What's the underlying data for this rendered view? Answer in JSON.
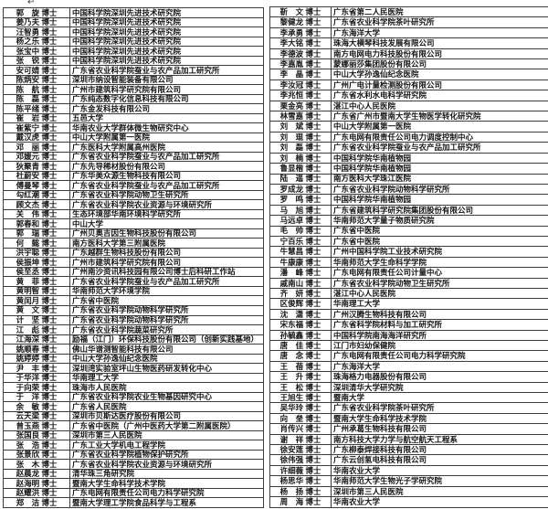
{
  "page": {
    "return_mark": "↵"
  },
  "left_table": {
    "rows": [
      {
        "name": "郭　旋 博士",
        "org": "中国科学院深圳先进技术研究院"
      },
      {
        "name": "姜乃夫 博士",
        "org": "中国科学院深圳先进技术研究院"
      },
      {
        "name": "汪智勇 博士",
        "org": "中国科学院深圳先进技术研究院"
      },
      {
        "name": "杨之乐 博士",
        "org": "中国科学院深圳先进技术研究院"
      },
      {
        "name": "张宝中 博士",
        "org": "中国科学院深圳先进技术研究院"
      },
      {
        "name": "张　锐 博士",
        "org": "中国科学院深圳先进技术研究院"
      },
      {
        "name": "安可婧 博士",
        "org": "广东省农业科学院蚕业与农产品加工研究所"
      },
      {
        "name": "陈炳安 博士",
        "org": "深圳市纳设智能装备有限公司"
      },
      {
        "name": "陈　航 博士",
        "org": "广州市建筑科学研究院有限公司"
      },
      {
        "name": "陈　磊 博士",
        "org": "广东纯态数字化信息科技有限公司"
      },
      {
        "name": "陈平绪 博士",
        "org": "广东金发科技有限公司"
      },
      {
        "name": "崔　岩 博士",
        "org": "五邑大学"
      },
      {
        "name": "崔紫宁 博士",
        "org": "华南农业大学群体微生物研究中心"
      },
      {
        "name": "戴汉虎 博士",
        "org": "中山大学附属第一医院"
      },
      {
        "name": "邓　丽 博士",
        "org": "广东医科大学附属高州医院"
      },
      {
        "name": "邓媛元 博士",
        "org": "广东省农业科学院蚕业与农产品加工研究所"
      },
      {
        "name": "狄聚青 博士",
        "org": "广东先导稀材股份有限公司"
      },
      {
        "name": "杜蔚安 博士",
        "org": "广东华美众源生物科技有限公司"
      },
      {
        "name": "傅曼琴 博士",
        "org": "广东省农业科学院蚕业与农产品加工研究所"
      },
      {
        "name": "勾红潮 博士",
        "org": "广东省农业科学院动物卫生研究所"
      },
      {
        "name": "顾文杰 博士",
        "org": "广东省农业科学院农业资源与环境研究所"
      },
      {
        "name": "关　伟 博士",
        "org": "生态环境部华南环境科学研究所"
      },
      {
        "name": "郭春和 博士",
        "org": "中山大学"
      },
      {
        "name": "郭　瑞 博士",
        "org": "广州贝奥吉因生物科技股份有限公司"
      },
      {
        "name": "何　懿 博士",
        "org": "南方医科大学第三附属医院"
      },
      {
        "name": "洪宇聪 博士",
        "org": "广东越群生物科技股份有限公司"
      },
      {
        "name": "侯振坤 博士",
        "org": "广州市建筑科学研究院有限公司"
      },
      {
        "name": "侯至丞 博士",
        "org": "广州南沙资讯科技园有限公司博士后科研工作站"
      },
      {
        "name": "黄　菲 博士",
        "org": "广东省农业科学院蚕业与农产品加工研究所"
      },
      {
        "name": "黄明智 博士",
        "org": "华南师范大学环境学院"
      },
      {
        "name": "黄闰月 博士",
        "org": "广东省中医院"
      },
      {
        "name": "黄　文 博士",
        "org": "广东省农业科学院动物科学研究所"
      },
      {
        "name": "计　坚 博士",
        "org": "广东省农业科学院动物科学研究所"
      },
      {
        "name": "江　彪 博士",
        "org": "广东省农业科学院蔬菜研究所"
      },
      {
        "name": "江海深 博士",
        "org": "励福（江门）环保科技股份有限公司（创新实践基地）"
      },
      {
        "name": "姚顺春 博士",
        "org": "佛山华谱测智能科技有限公司"
      },
      {
        "name": "姚婷婷 博士",
        "org": "中山大学孙逸仙纪念医院"
      },
      {
        "name": "尹　丰 博士",
        "org": "深圳湾实验室坪山生物医药研发转化中心"
      },
      {
        "name": "于华洋 博士",
        "org": "华南理工大学"
      },
      {
        "name": "于向荣 博士",
        "org": "珠海市人民医院"
      },
      {
        "name": "于　洋 博士",
        "org": "广东省农业科学院农业生物基因研究中心"
      },
      {
        "name": "余　敏 博士",
        "org": "广东省人民医院"
      },
      {
        "name": "云天梁 博士",
        "org": "深圳市贝斯达医疗股份有限公司"
      },
      {
        "name": "曾玉燕 博士",
        "org": "广东省中医院（广州中医药大学第二附属医院）"
      },
      {
        "name": "张国良 博士",
        "org": "深圳市第三人民医院"
      },
      {
        "name": "张　浩 博士",
        "org": "广东工业大学机电工程学院"
      },
      {
        "name": "张景欣 博士",
        "org": "广东省农业科学院植物保护研究所"
      },
      {
        "name": "张　木 博士",
        "org": "广东省农业科学院农业资源与环境研究所"
      },
      {
        "name": "赵晨龙 博士",
        "org": "清华珠三角研究院"
      },
      {
        "name": "赵海明 博士",
        "org": "暨南大学生命科学技术学院"
      },
      {
        "name": "赵耀洪 博士",
        "org": "广东电网有限责任公司电力科学研究院"
      },
      {
        "name": "郑　洁 博士",
        "org": "暨南大学理工学院食品科学与工程系"
      }
    ]
  },
  "right_table": {
    "rows": [
      {
        "name": "靳　文 博士",
        "org": "广东省第二人民医院"
      },
      {
        "name": "黎健龙 博士",
        "org": "广东省农业科学院茶叶研究所"
      },
      {
        "name": "李承勇 博士",
        "org": "广东海洋大学"
      },
      {
        "name": "李大铭 博士",
        "org": "珠海大横琴科技发展有限公司"
      },
      {
        "name": "李德波 博士",
        "org": "南方电网电力科技股份有限公司"
      },
      {
        "name": "李嘉胤 博士",
        "org": "蒙娜丽莎集团股份有限公司"
      },
      {
        "name": "李　晶 博士",
        "org": "中山大学孙逸仙纪念医院"
      },
      {
        "name": "李汝冠 博士",
        "org": "广州广电计量检测股份有限公司"
      },
      {
        "name": "李兆恒 博士",
        "org": "广东省水利水电科学研究院"
      },
      {
        "name": "栗金亮 博士",
        "org": "湛江中心人民医院"
      },
      {
        "name": "林雪嘉 博士",
        "org": "广东省广州市暨南大学生物医学转化研究院"
      },
      {
        "name": "刘　斌 博士",
        "org": "中山大学附属第一医院"
      },
      {
        "name": "刘　琨 博士",
        "org": "广东电网有限责任公司电力调度控制中心"
      },
      {
        "name": "刘　磊 博士",
        "org": "广东省农业科学院蚕业与农产品加工研究所"
      },
      {
        "name": "刘　楠 博士",
        "org": "中国科学院华南植物园"
      },
      {
        "name": "鲁显楷 博士",
        "org": "中国科学院华南植物园"
      },
      {
        "name": "陆　遥 博士",
        "org": "南方医科大学珠江医院"
      },
      {
        "name": "罗成龙 博士",
        "org": "广东省农业科学院动物科学研究所"
      },
      {
        "name": "罗　鸣 博士",
        "org": "中国科学院华南植物园"
      },
      {
        "name": "马　旭 博士",
        "org": "广东省建筑科学研究院集团股份有限公司"
      },
      {
        "name": "马远卓 博士",
        "org": "华南师范大学量子物质研究院"
      },
      {
        "name": "毛　帅 博士",
        "org": "广东省中医院"
      },
      {
        "name": "宁百乐 博士",
        "org": "广东省中医院"
      },
      {
        "name": "牛慧昌 博士",
        "org": "广州中国科学院工业技术研究院"
      },
      {
        "name": "牛康康 博士",
        "org": "华南师范大学生命科学学院"
      },
      {
        "name": "潘　峰 博士",
        "org": "广东电网有限责任公司计量中心"
      },
      {
        "name": "戚南山 博士",
        "org": "广东省农业科学院动物卫生研究所"
      },
      {
        "name": "齐　妍 博士",
        "org": "湛江中心人民医院"
      },
      {
        "name": "区俊辉 博士",
        "org": "华南理工大学"
      },
      {
        "name": "沈　潇 博士",
        "org": "广州汉腾生物科技有限公司"
      },
      {
        "name": "宋东福 博士",
        "org": "广东省科学院材料与加工研究所"
      },
      {
        "name": "孙毓鑫 博士",
        "org": "中国科学院南海海洋研究所"
      },
      {
        "name": "唐　佳 博士",
        "org": "江门市妇幼保健院"
      },
      {
        "name": "唐　念 博士",
        "org": "广东电网有限责任公司电力科学研究院"
      },
      {
        "name": "王　蓓 博士",
        "org": "广东海洋大学"
      },
      {
        "name": "王　升 博士",
        "org": "珠海格力电器股份有限公司"
      },
      {
        "name": "王　松 博士",
        "org": "深圳清华大学研究院"
      },
      {
        "name": "王旭生 博士",
        "org": "暨南大学"
      },
      {
        "name": "吴华玲 博士",
        "org": "广东省农业科学院茶叶研究所"
      },
      {
        "name": "向　垒 博士",
        "org": "暨南大学生命科学技术学院"
      },
      {
        "name": "肖传兴 博士",
        "org": "广州承葛生物科技有限公司"
      },
      {
        "name": "谢　祥 博士",
        "org": "南方科技大学力学与航空航天工程系"
      },
      {
        "name": "徐安莲 博士",
        "org": "广东柳泰焊接科技有限公司"
      },
      {
        "name": "徐伟强 博士",
        "org": "广东云创氢电科技有限公司"
      },
      {
        "name": "许细薇 博士",
        "org": "华南农业大学"
      },
      {
        "name": "杨思华 博士",
        "org": "华南师范大学生物光子学研究院"
      },
      {
        "name": "杨　扬 博士",
        "org": "深圳市第三人民医院"
      },
      {
        "name": "周　海 博士",
        "org": "华南农业大学"
      }
    ]
  }
}
